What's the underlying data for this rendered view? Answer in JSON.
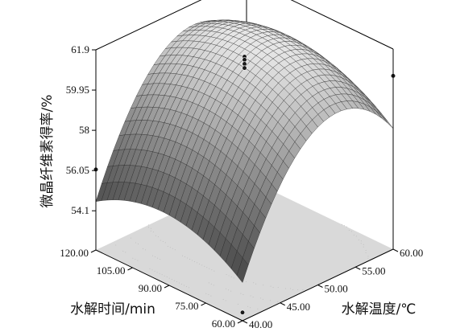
{
  "chart_data": {
    "type": "surface3d",
    "title": "",
    "zlabel": "微晶纤维素得率/%",
    "xlabel": "水解时间/min",
    "ylabel": "水解温度/℃",
    "x_ticks": [
      "60.00",
      "75.00",
      "90.00",
      "105.00",
      "120.00"
    ],
    "y_ticks": [
      "40.00",
      "45.00",
      "50.00",
      "55.00",
      "60.00"
    ],
    "z_ticks": [
      "54.1",
      "56.05",
      "58",
      "59.95",
      "61.9"
    ],
    "xlim": [
      60,
      120
    ],
    "ylim": [
      40,
      60
    ],
    "zlim": [
      52.2,
      61.9
    ],
    "surface_model": {
      "description_values": "quadratic response surface",
      "x_center": 90,
      "x_half_range": 30,
      "y_center": 50,
      "y_half_range": 10,
      "intercept": 61.5,
      "x_coef": 0.35,
      "y_coef": 2.1,
      "xy_coef": 0.1,
      "x2_coef": -1.3,
      "y2_coef": -3.8
    },
    "points": [
      {
        "x": 90,
        "y": 50,
        "z": 61.55
      },
      {
        "x": 90,
        "y": 50,
        "z": 61.4
      },
      {
        "x": 90,
        "y": 50,
        "z": 61.2
      },
      {
        "x": 90,
        "y": 50,
        "z": 61.0
      },
      {
        "x": 60,
        "y": 40,
        "z": 52.6
      },
      {
        "x": 120,
        "y": 40,
        "z": 56.1
      },
      {
        "x": 60,
        "y": 60,
        "z": 60.6
      }
    ],
    "grid": false,
    "legend": "none"
  },
  "colors": {
    "surface_low": "#3a3a3a",
    "surface_high": "#e6e6e6",
    "mesh_line": "#222222",
    "floor": "#d9d9d9",
    "contour": "#bbbbbb"
  }
}
